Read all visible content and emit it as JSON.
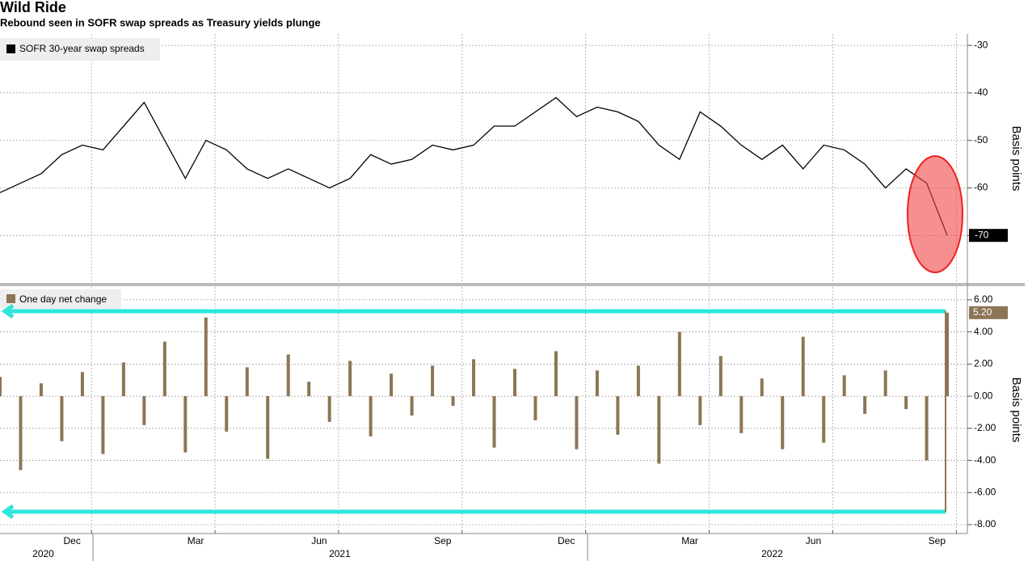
{
  "chart_data": [
    {
      "type": "line",
      "title": "Wild Ride",
      "subtitle": "Rebound seen in SOFR swap spreads as Treasury yields plunge",
      "ylabel": "Basis points",
      "x": [
        -2.25,
        -1.75,
        -1.25,
        -0.75,
        -0.25,
        0.25,
        0.75,
        1.25,
        1.75,
        2.25,
        2.75,
        3.25,
        3.75,
        4.25,
        4.75,
        5.25,
        5.75,
        6.25,
        6.75,
        7.25,
        7.75,
        8.25,
        8.75,
        9.25,
        9.75,
        10.25,
        10.75,
        11.25,
        11.75,
        12.25,
        12.75,
        13.25,
        13.75,
        14.25,
        14.75,
        15.25,
        15.75,
        16.25,
        16.75,
        17.25,
        17.75,
        18.25,
        18.75,
        19.25,
        19.75,
        20.25,
        20.75
      ],
      "series": [
        {
          "name": "SOFR 30-year swap spreads",
          "color": "#000000",
          "values": [
            -61,
            -59,
            -57,
            -53,
            -51,
            -52,
            -47,
            -42,
            -50,
            -58,
            -50,
            -52,
            -56,
            -58,
            -56,
            -58,
            -60,
            -58,
            -53,
            -55,
            -54,
            -51,
            -52,
            -51,
            -47,
            -47,
            -44,
            -41,
            -45,
            -43,
            -44,
            -46,
            -51,
            -54,
            -44,
            -47,
            -51,
            -54,
            -51,
            -56,
            -51,
            -52,
            -55,
            -60,
            -56,
            -59,
            -70
          ]
        }
      ],
      "xlim": [
        -2.25,
        21.2
      ],
      "ylim": [
        -80,
        -27.6
      ],
      "xticks": [
        {
          "value": -0.5,
          "label": "Dec"
        },
        {
          "value": 2.5,
          "label": "Mar"
        },
        {
          "value": 5.5,
          "label": "Jun"
        },
        {
          "value": 8.5,
          "label": "Sep"
        },
        {
          "value": 11.5,
          "label": "Dec"
        },
        {
          "value": 14.5,
          "label": "Mar"
        },
        {
          "value": 17.5,
          "label": "Jun"
        },
        {
          "value": 20.5,
          "label": "Sep"
        }
      ],
      "year_labels": [
        {
          "value": -1.2,
          "label": "2020"
        },
        {
          "value": 6,
          "label": "2021"
        },
        {
          "value": 16.5,
          "label": "2022"
        }
      ],
      "yticks": [
        -30,
        -40,
        -50,
        -60,
        -70
      ],
      "grid": true
    },
    {
      "type": "bar",
      "ylabel": "Basis points",
      "x": [
        -2.25,
        -1.75,
        -1.25,
        -0.75,
        -0.25,
        0.25,
        0.75,
        1.25,
        1.75,
        2.25,
        2.75,
        3.25,
        3.75,
        4.25,
        4.75,
        5.25,
        5.75,
        6.25,
        6.75,
        7.25,
        7.75,
        8.25,
        8.75,
        9.25,
        9.75,
        10.25,
        10.75,
        11.25,
        11.75,
        12.25,
        12.75,
        13.25,
        13.75,
        14.25,
        14.75,
        15.25,
        15.75,
        16.25,
        16.75,
        17.25,
        17.75,
        18.25,
        18.75,
        19.25,
        19.75,
        20.25,
        20.75
      ],
      "series": [
        {
          "name": "One day net change",
          "color": "#8c7556",
          "values": [
            1.2,
            -4.6,
            0.8,
            -2.8,
            1.5,
            -3.6,
            2.1,
            -1.8,
            3.4,
            -3.5,
            4.9,
            -2.2,
            1.8,
            -3.9,
            2.6,
            0.9,
            -1.6,
            2.2,
            -2.5,
            1.4,
            -1.2,
            1.9,
            -0.6,
            2.3,
            -3.2,
            1.7,
            -1.5,
            2.8,
            -3.3,
            1.6,
            -2.4,
            1.9,
            -4.2,
            4.0,
            -1.8,
            2.5,
            -2.3,
            1.1,
            -3.3,
            3.7,
            -2.9,
            1.3,
            -1.1,
            1.6,
            -0.8,
            -4.0,
            5.2
          ],
          "value_labels": [
            null,
            null,
            null,
            null,
            null,
            null,
            null,
            null,
            null,
            null,
            null,
            null,
            null,
            null,
            null,
            null,
            null,
            null,
            null,
            null,
            null,
            null,
            null,
            null,
            null,
            null,
            null,
            null,
            null,
            null,
            null,
            null,
            null,
            null,
            null,
            null,
            null,
            null,
            null,
            null,
            null,
            null,
            null,
            null,
            null,
            null,
            "5.20"
          ]
        }
      ],
      "xlim": [
        -2.25,
        21.2
      ],
      "ylim": [
        -8.55,
        6.8
      ],
      "yticks": [
        {
          "value": 6,
          "label": "6.00"
        },
        {
          "value": 4,
          "label": "4.00"
        },
        {
          "value": 2,
          "label": "2.00"
        },
        {
          "value": 0,
          "label": "0.00"
        },
        {
          "value": -2,
          "label": "-2.00"
        },
        {
          "value": -4,
          "label": "-4.00"
        },
        {
          "value": -6,
          "label": "-6.00"
        },
        {
          "value": -8,
          "label": "-8.00"
        }
      ],
      "grid": true
    }
  ]
}
